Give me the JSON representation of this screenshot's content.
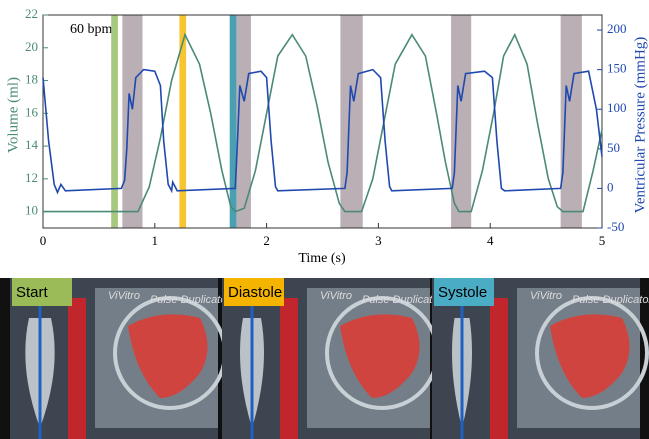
{
  "chart_data": {
    "type": "line",
    "annotation": "60 bpm",
    "xlabel": "Time (s)",
    "ylabel": "Volume (ml)",
    "y2label": "Ventricular Pressure (mmHg)",
    "xlim": [
      0,
      5
    ],
    "xticks": [
      0,
      1,
      2,
      3,
      4,
      5
    ],
    "ylim": [
      9,
      22
    ],
    "yticks": [
      10,
      12,
      14,
      16,
      18,
      20,
      22
    ],
    "y2lim": [
      -50,
      219
    ],
    "y2ticks": [
      -50,
      0,
      50,
      100,
      150,
      200
    ],
    "ycolor": "#4a8a76",
    "y2color": "#1f48b0",
    "shaded_regions": {
      "color": "#b9afb5",
      "ranges": [
        [
          0.71,
          0.89
        ],
        [
          1.73,
          1.86
        ],
        [
          2.66,
          2.86
        ],
        [
          3.65,
          3.83
        ],
        [
          4.63,
          4.82
        ]
      ]
    },
    "marker_bands": [
      {
        "x": [
          0.61,
          0.67
        ],
        "color": "#a8c880"
      },
      {
        "x": [
          1.22,
          1.28
        ],
        "color": "#f7c531"
      },
      {
        "x": [
          1.67,
          1.73
        ],
        "color": "#4a9fb0"
      }
    ],
    "series": [
      {
        "color": "#4a8a76",
        "x": [
          0,
          0.85,
          0.95,
          1.05,
          1.15,
          1.27,
          1.4,
          1.5,
          1.6,
          1.68,
          1.72,
          1.8,
          1.9,
          2.0,
          2.1,
          2.23,
          2.35,
          2.45,
          2.55,
          2.65,
          2.7,
          2.85,
          2.95,
          3.05,
          3.15,
          3.3,
          3.42,
          3.52,
          3.6,
          3.68,
          3.72,
          3.83,
          3.93,
          4.03,
          4.12,
          4.22,
          4.33,
          4.42,
          4.52,
          4.6,
          4.65,
          4.83,
          4.92,
          5.0
        ],
        "values": [
          10,
          10,
          11.5,
          14.5,
          18,
          20.8,
          19,
          16,
          12.5,
          10.3,
          10,
          10.2,
          12.5,
          16,
          19.5,
          20.8,
          19.5,
          16.5,
          13,
          10.5,
          10,
          10,
          12,
          15.5,
          19,
          20.8,
          19.5,
          16,
          13,
          10.5,
          10,
          10,
          12.5,
          16,
          19.5,
          20.8,
          19,
          15.5,
          12,
          10.3,
          10,
          10,
          12.5,
          15
        ]
      },
      {
        "color": "#1f48b0",
        "axis": "y2",
        "x": [
          0,
          0.05,
          0.1,
          0.13,
          0.16,
          0.2,
          0.7,
          0.73,
          0.75,
          0.77,
          0.8,
          0.83,
          0.9,
          1.0,
          1.05,
          1.08,
          1.12,
          1.15,
          1.16,
          1.2,
          1.72,
          1.74,
          1.76,
          1.8,
          1.84,
          1.95,
          2.0,
          2.04,
          2.08,
          2.1,
          2.7,
          2.72,
          2.75,
          2.78,
          2.82,
          2.95,
          3.02,
          3.06,
          3.1,
          3.12,
          3.66,
          3.68,
          3.71,
          3.74,
          3.78,
          3.95,
          4.02,
          4.06,
          4.1,
          4.13,
          4.63,
          4.65,
          4.68,
          4.71,
          4.75,
          4.88,
          4.95,
          5.0
        ],
        "values": [
          140,
          60,
          5,
          -5,
          5,
          -3,
          0,
          10,
          50,
          120,
          100,
          140,
          150,
          148,
          130,
          60,
          5,
          -3,
          8,
          -3,
          0,
          60,
          130,
          110,
          145,
          148,
          140,
          60,
          2,
          -3,
          0,
          20,
          130,
          110,
          145,
          150,
          140,
          60,
          2,
          -3,
          0,
          20,
          130,
          110,
          145,
          148,
          140,
          60,
          0,
          -3,
          0,
          20,
          130,
          110,
          145,
          148,
          100,
          40
        ]
      }
    ]
  },
  "image_panels": {
    "labels": [
      "Start",
      "Diastole",
      "Systole"
    ],
    "label_colors": [
      "#9bbb59",
      "#f5b400",
      "#4bacc6"
    ],
    "brand": "ViVitro",
    "device": "Pulse Duplicator"
  }
}
